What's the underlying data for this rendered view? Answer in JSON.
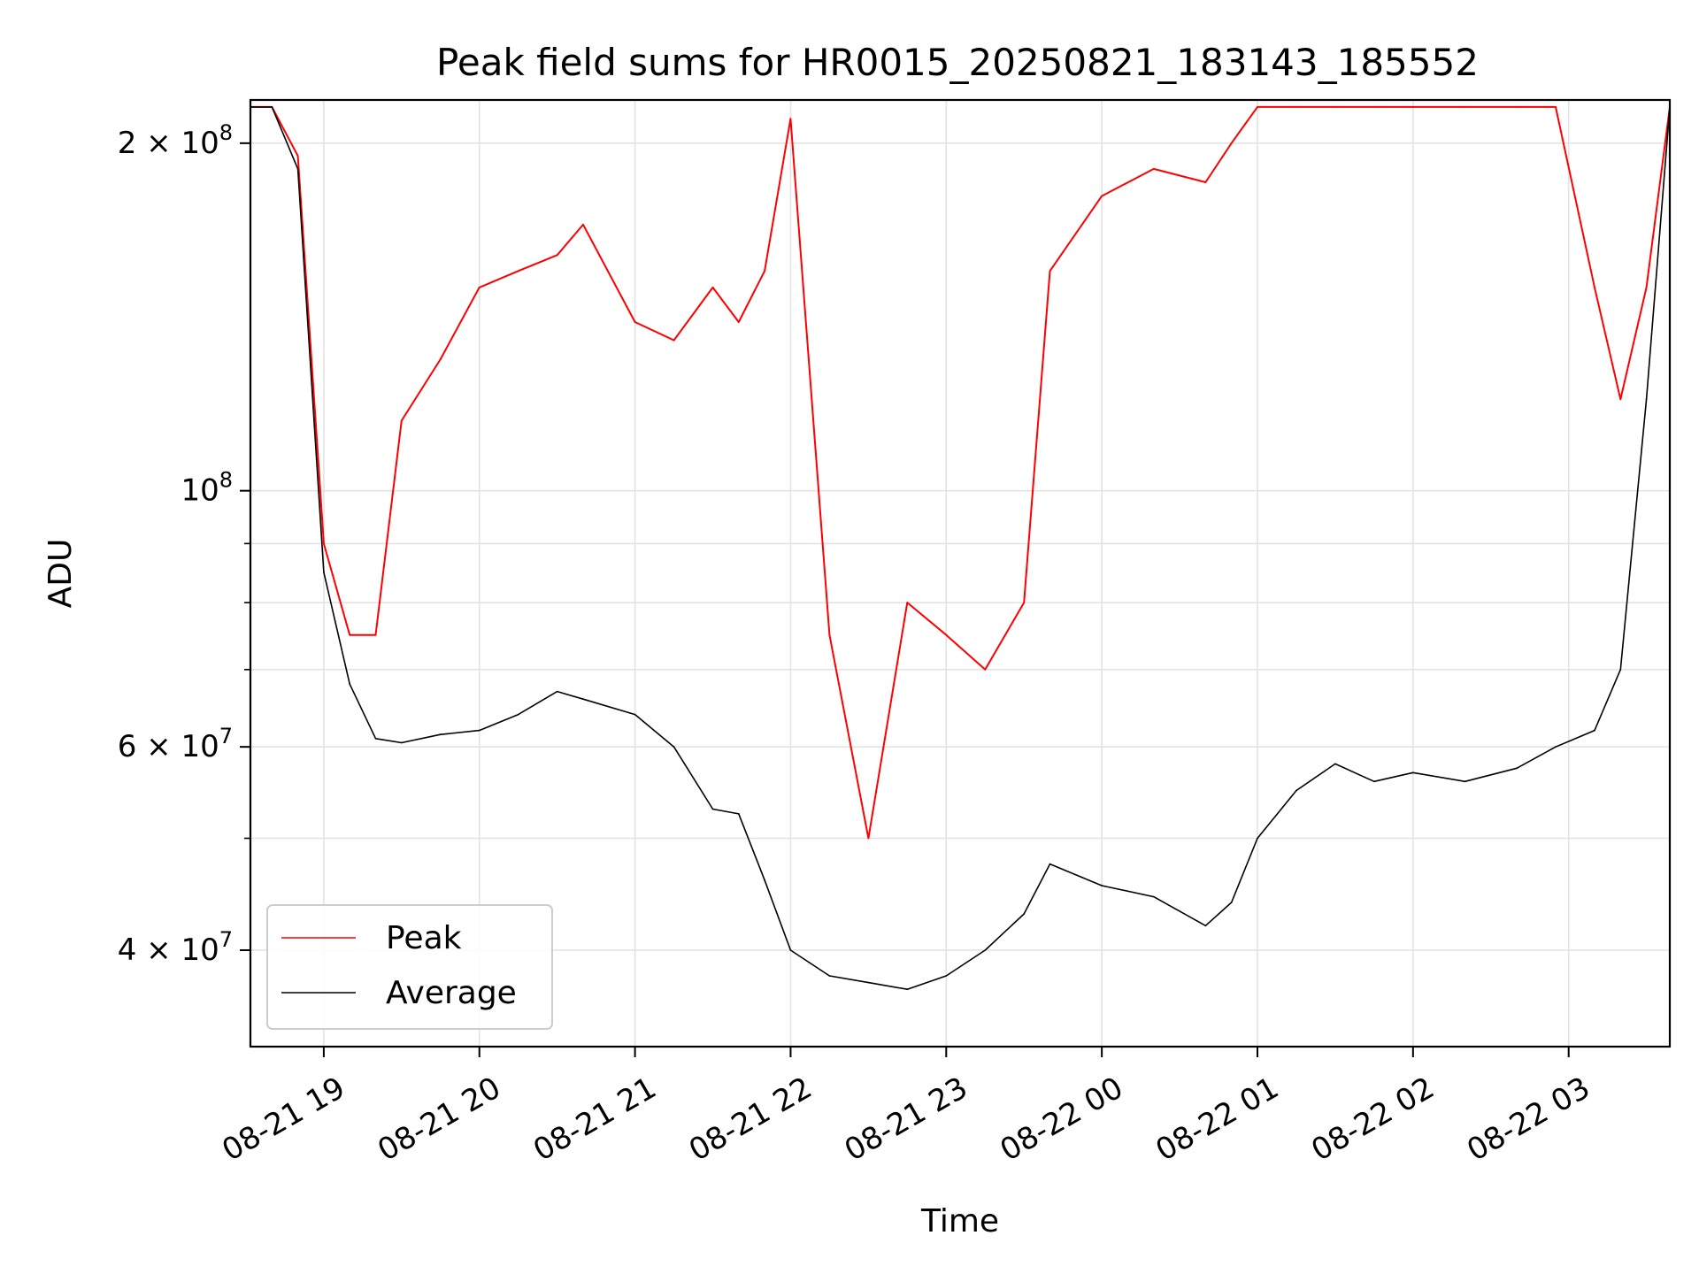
{
  "chart_data": {
    "type": "line",
    "title": "Peak field sums for HR0015_20250821_183143_185552",
    "xlabel": "Time",
    "ylabel": "ADU",
    "yscale": "log",
    "ylim": [
      33000000,
      218000000
    ],
    "xlim": [
      "2025-08-21 18:31:43",
      "2025-08-22 03:39:00"
    ],
    "grid": true,
    "legend_position": "lower-left",
    "x_ticks": [
      {
        "value": "2025-08-21 19:00",
        "label": "08-21 19"
      },
      {
        "value": "2025-08-21 20:00",
        "label": "08-21 20"
      },
      {
        "value": "2025-08-21 21:00",
        "label": "08-21 21"
      },
      {
        "value": "2025-08-21 22:00",
        "label": "08-21 22"
      },
      {
        "value": "2025-08-21 23:00",
        "label": "08-21 23"
      },
      {
        "value": "2025-08-22 00:00",
        "label": "08-22 00"
      },
      {
        "value": "2025-08-22 01:00",
        "label": "08-22 01"
      },
      {
        "value": "2025-08-22 02:00",
        "label": "08-22 02"
      },
      {
        "value": "2025-08-22 03:00",
        "label": "08-22 03"
      }
    ],
    "y_ticks": [
      {
        "value": 40000000,
        "base": "4 × 10",
        "exp": "7"
      },
      {
        "value": 60000000,
        "base": "6 × 10",
        "exp": "7"
      },
      {
        "value": 100000000,
        "base": "10",
        "exp": "8"
      },
      {
        "value": 200000000,
        "base": "2 × 10",
        "exp": "8"
      }
    ],
    "y_minor_ticks": [
      50000000,
      70000000,
      80000000,
      90000000
    ],
    "x": [
      "2025-08-21 18:31:43",
      "2025-08-21 18:40",
      "2025-08-21 18:50",
      "2025-08-21 19:00",
      "2025-08-21 19:10",
      "2025-08-21 19:20",
      "2025-08-21 19:30",
      "2025-08-21 19:45",
      "2025-08-21 20:00",
      "2025-08-21 20:15",
      "2025-08-21 20:30",
      "2025-08-21 20:40",
      "2025-08-21 21:00",
      "2025-08-21 21:15",
      "2025-08-21 21:30",
      "2025-08-21 21:40",
      "2025-08-21 21:50",
      "2025-08-21 22:00",
      "2025-08-21 22:15",
      "2025-08-21 22:30",
      "2025-08-21 22:45",
      "2025-08-21 23:00",
      "2025-08-21 23:15",
      "2025-08-21 23:30",
      "2025-08-21 23:40",
      "2025-08-22 00:00",
      "2025-08-22 00:20",
      "2025-08-22 00:40",
      "2025-08-22 00:50",
      "2025-08-22 01:00",
      "2025-08-22 01:15",
      "2025-08-22 01:30",
      "2025-08-22 01:45",
      "2025-08-22 02:00",
      "2025-08-22 02:20",
      "2025-08-22 02:40",
      "2025-08-22 02:55",
      "2025-08-22 03:10",
      "2025-08-22 03:20",
      "2025-08-22 03:30",
      "2025-08-22 03:39"
    ],
    "series": [
      {
        "name": "Average",
        "color": "#000000",
        "values": [
          215000000,
          215000000,
          190000000,
          85000000,
          68000000,
          61000000,
          60500000,
          61500000,
          62000000,
          64000000,
          67000000,
          66000000,
          64000000,
          60000000,
          53000000,
          52500000,
          46000000,
          40000000,
          38000000,
          37500000,
          37000000,
          38000000,
          40000000,
          43000000,
          47500000,
          45500000,
          44500000,
          42000000,
          44000000,
          50000000,
          55000000,
          58000000,
          56000000,
          57000000,
          56000000,
          57500000,
          60000000,
          62000000,
          70000000,
          120000000,
          215000000
        ]
      },
      {
        "name": "Peak",
        "color": "#ff0000",
        "values": [
          215000000,
          215000000,
          195000000,
          90000000,
          75000000,
          75000000,
          115000000,
          130000000,
          150000000,
          155000000,
          160000000,
          170000000,
          140000000,
          135000000,
          150000000,
          140000000,
          155000000,
          210000000,
          75000000,
          50000000,
          80000000,
          75000000,
          70000000,
          80000000,
          155000000,
          180000000,
          190000000,
          185000000,
          200000000,
          215000000,
          215000000,
          215000000,
          215000000,
          215000000,
          215000000,
          215000000,
          215000000,
          150000000,
          120000000,
          150000000,
          215000000
        ]
      }
    ]
  }
}
